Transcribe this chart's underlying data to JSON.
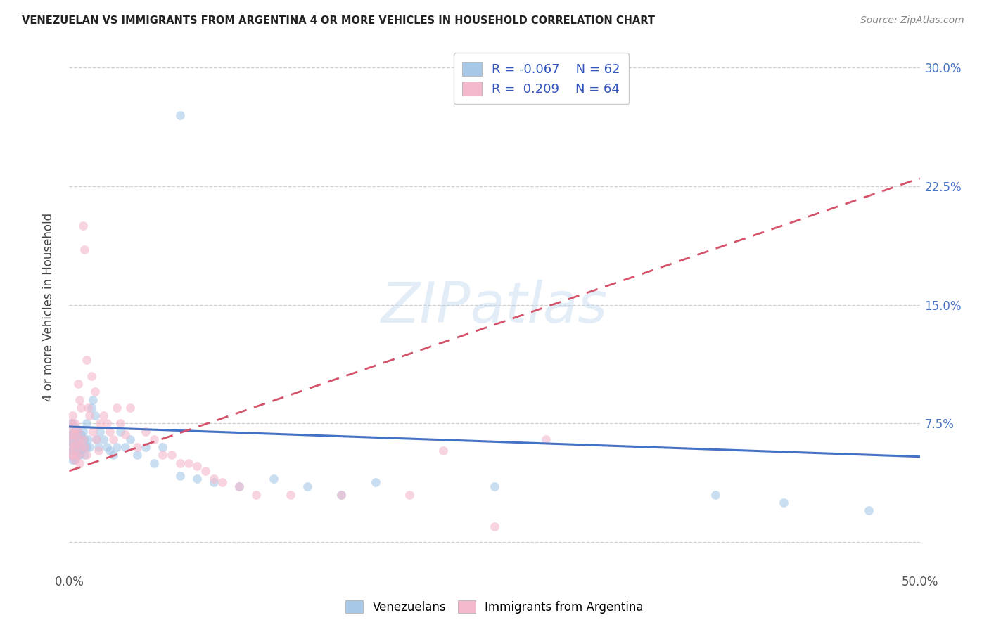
{
  "title": "VENEZUELAN VS IMMIGRANTS FROM ARGENTINA 4 OR MORE VEHICLES IN HOUSEHOLD CORRELATION CHART",
  "source": "Source: ZipAtlas.com",
  "ylabel": "4 or more Vehicles in Household",
  "watermark": "ZIPatlas",
  "xmin": 0.0,
  "xmax": 0.5,
  "ymin": -0.018,
  "ymax": 0.315,
  "xticks": [
    0.0,
    0.1,
    0.2,
    0.3,
    0.4,
    0.5
  ],
  "xticklabels_show": [
    "0.0%",
    "50.0%"
  ],
  "yticks_right": [
    0.0,
    0.075,
    0.15,
    0.225,
    0.3
  ],
  "yticklabels_right": [
    "",
    "7.5%",
    "15.0%",
    "22.5%",
    "30.0%"
  ],
  "legend_blue_R": "-0.067",
  "legend_blue_N": "62",
  "legend_pink_R": "0.209",
  "legend_pink_N": "64",
  "blue_scatter_color": "#a8c8e8",
  "pink_scatter_color": "#f4b8cc",
  "blue_line_color": "#4472c4",
  "pink_line_color": "#d4526a",
  "marker_size": 85,
  "blue_alpha": 0.6,
  "pink_alpha": 0.6,
  "grid_color": "#d0d0d0",
  "venezuelan_x": [
    0.001,
    0.001,
    0.001,
    0.001,
    0.001,
    0.002,
    0.002,
    0.002,
    0.002,
    0.002,
    0.003,
    0.003,
    0.003,
    0.003,
    0.004,
    0.004,
    0.004,
    0.005,
    0.005,
    0.005,
    0.006,
    0.006,
    0.007,
    0.007,
    0.008,
    0.008,
    0.009,
    0.009,
    0.01,
    0.01,
    0.011,
    0.012,
    0.013,
    0.014,
    0.015,
    0.016,
    0.017,
    0.018,
    0.02,
    0.022,
    0.024,
    0.026,
    0.028,
    0.03,
    0.033,
    0.036,
    0.04,
    0.045,
    0.05,
    0.055,
    0.065,
    0.075,
    0.085,
    0.1,
    0.12,
    0.14,
    0.16,
    0.18,
    0.25,
    0.38,
    0.42,
    0.47
  ],
  "venezuelan_y": [
    0.075,
    0.068,
    0.063,
    0.058,
    0.055,
    0.075,
    0.068,
    0.063,
    0.058,
    0.052,
    0.07,
    0.065,
    0.058,
    0.052,
    0.072,
    0.062,
    0.055,
    0.068,
    0.062,
    0.055,
    0.065,
    0.055,
    0.068,
    0.058,
    0.07,
    0.06,
    0.065,
    0.055,
    0.075,
    0.06,
    0.065,
    0.06,
    0.085,
    0.09,
    0.08,
    0.065,
    0.06,
    0.07,
    0.065,
    0.06,
    0.058,
    0.055,
    0.06,
    0.07,
    0.06,
    0.065,
    0.055,
    0.06,
    0.05,
    0.06,
    0.042,
    0.04,
    0.038,
    0.035,
    0.04,
    0.035,
    0.03,
    0.038,
    0.035,
    0.03,
    0.025,
    0.02
  ],
  "venezuela_outlier_x": [
    0.065
  ],
  "venezuela_outlier_y": [
    0.27
  ],
  "argentina_x": [
    0.001,
    0.001,
    0.001,
    0.001,
    0.002,
    0.002,
    0.002,
    0.002,
    0.003,
    0.003,
    0.003,
    0.003,
    0.004,
    0.004,
    0.004,
    0.005,
    0.005,
    0.005,
    0.006,
    0.006,
    0.006,
    0.007,
    0.007,
    0.008,
    0.008,
    0.009,
    0.009,
    0.01,
    0.01,
    0.011,
    0.012,
    0.013,
    0.014,
    0.015,
    0.016,
    0.017,
    0.018,
    0.02,
    0.022,
    0.024,
    0.026,
    0.028,
    0.03,
    0.033,
    0.036,
    0.04,
    0.045,
    0.05,
    0.055,
    0.06,
    0.065,
    0.07,
    0.075,
    0.08,
    0.085,
    0.09,
    0.1,
    0.11,
    0.13,
    0.16,
    0.2,
    0.22,
    0.25,
    0.28
  ],
  "argentina_y": [
    0.075,
    0.068,
    0.06,
    0.055,
    0.08,
    0.072,
    0.065,
    0.055,
    0.075,
    0.068,
    0.06,
    0.052,
    0.072,
    0.062,
    0.055,
    0.1,
    0.07,
    0.055,
    0.09,
    0.065,
    0.05,
    0.085,
    0.06,
    0.2,
    0.065,
    0.185,
    0.06,
    0.115,
    0.055,
    0.085,
    0.08,
    0.105,
    0.07,
    0.095,
    0.065,
    0.058,
    0.075,
    0.08,
    0.075,
    0.07,
    0.065,
    0.085,
    0.075,
    0.068,
    0.085,
    0.06,
    0.07,
    0.065,
    0.055,
    0.055,
    0.05,
    0.05,
    0.048,
    0.045,
    0.04,
    0.038,
    0.035,
    0.03,
    0.03,
    0.03,
    0.03,
    0.058,
    0.01,
    0.065
  ]
}
